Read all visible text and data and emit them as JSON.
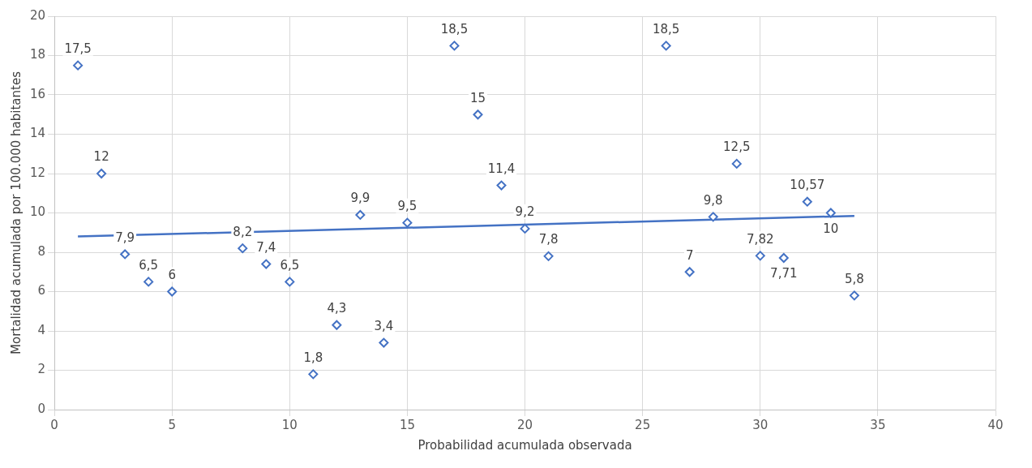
{
  "chart_data": {
    "type": "scatter",
    "xlabel": "Probabilidad acumulada observada",
    "ylabel": "Mortalidad acumulada por 100.000 habitantes",
    "xlim": [
      0,
      40
    ],
    "xticks": [
      0,
      5,
      10,
      15,
      20,
      25,
      30,
      35,
      40
    ],
    "ylim": [
      0,
      20
    ],
    "yticks": [
      0,
      2,
      4,
      6,
      8,
      10,
      12,
      14,
      16,
      18,
      20
    ],
    "grid": true,
    "legend": false,
    "series": [
      {
        "type": "scatter",
        "color": "#4472c4",
        "marker": "diamond",
        "x": [
          1,
          2,
          3,
          4,
          5,
          8,
          9,
          10,
          11,
          12,
          13,
          14,
          15,
          17,
          18,
          19,
          20,
          21,
          26,
          27,
          28,
          29,
          30,
          31,
          32,
          33,
          34
        ],
        "values": [
          17.5,
          12,
          7.9,
          6.5,
          6,
          8.2,
          7.4,
          6.5,
          1.8,
          4.3,
          9.9,
          3.4,
          9.5,
          18.5,
          15,
          11.4,
          9.2,
          7.8,
          18.5,
          7,
          9.8,
          12.5,
          7.82,
          7.71,
          10.57,
          10,
          5.8
        ],
        "value_labels": [
          "17,5",
          "12",
          "7,9",
          "6,5",
          "6",
          "8,2",
          "7,4",
          "6,5",
          "1,8",
          "4,3",
          "9,9",
          "3,4",
          "9,5",
          "18,5",
          "15",
          "11,4",
          "9,2",
          "7,8",
          "18,5",
          "7",
          "9,8",
          "12,5",
          "7,82",
          "7,71",
          "10,57",
          "10",
          "5,8"
        ]
      },
      {
        "type": "line",
        "color": "#4472c4",
        "marker": "none",
        "line_style": "solid",
        "x": [
          1,
          34
        ],
        "values": [
          8.8,
          9.85
        ]
      }
    ]
  }
}
